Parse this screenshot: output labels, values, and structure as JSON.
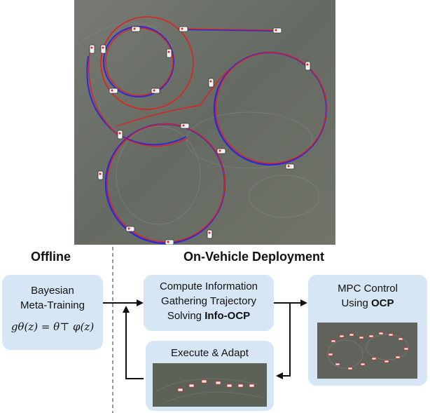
{
  "sections": {
    "offline": "Offline",
    "deployment": "On-Vehicle Deployment"
  },
  "boxes": {
    "bayesian": {
      "line1": "Bayesian",
      "line2": "Meta-Training",
      "formula": "gθ(z) = θ⊤ φ(z)"
    },
    "compute": {
      "line1": "Compute Information",
      "line2": "Gathering Trajectory",
      "line3_prefix": "Solving ",
      "line3_bold": "Info-OCP"
    },
    "mpc": {
      "line1": "MPC Control",
      "line2_prefix": "Using ",
      "line2_bold": "OCP"
    },
    "execute": {
      "label": "Execute & Adapt"
    }
  },
  "colors": {
    "box_fill": "#d6e6f5",
    "trajectory_red": "#e0201c",
    "trajectory_blue": "#2a2ad8",
    "ground": "#6b6f68"
  }
}
